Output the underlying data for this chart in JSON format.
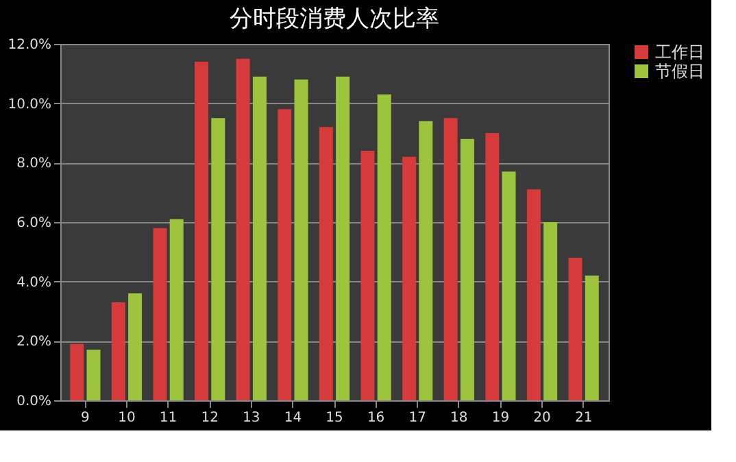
{
  "chart_data": {
    "type": "bar",
    "title": "分时段消费人次比率",
    "categories": [
      "9",
      "10",
      "11",
      "12",
      "13",
      "14",
      "15",
      "16",
      "17",
      "18",
      "19",
      "20",
      "21"
    ],
    "series": [
      {
        "name": "工作日",
        "color": "#d63a3a",
        "values": [
          1.9,
          3.3,
          5.8,
          11.4,
          11.5,
          9.8,
          9.2,
          8.4,
          8.2,
          9.5,
          9.0,
          7.1,
          4.8
        ]
      },
      {
        "name": "节假日",
        "color": "#9cc43c",
        "values": [
          1.7,
          3.6,
          6.1,
          9.5,
          10.9,
          10.8,
          10.9,
          10.3,
          9.4,
          8.8,
          7.7,
          6.0,
          4.2
        ]
      }
    ],
    "ylim": [
      0,
      12
    ],
    "yticks": [
      {
        "value": 0,
        "label": "0.0%"
      },
      {
        "value": 2,
        "label": "2.0%"
      },
      {
        "value": 4,
        "label": "4.0%"
      },
      {
        "value": 6,
        "label": "6.0%"
      },
      {
        "value": 8,
        "label": "8.0%"
      },
      {
        "value": 10,
        "label": "10.0%"
      },
      {
        "value": 12,
        "label": "12.0%"
      }
    ],
    "grid": "y",
    "legend": "right"
  }
}
